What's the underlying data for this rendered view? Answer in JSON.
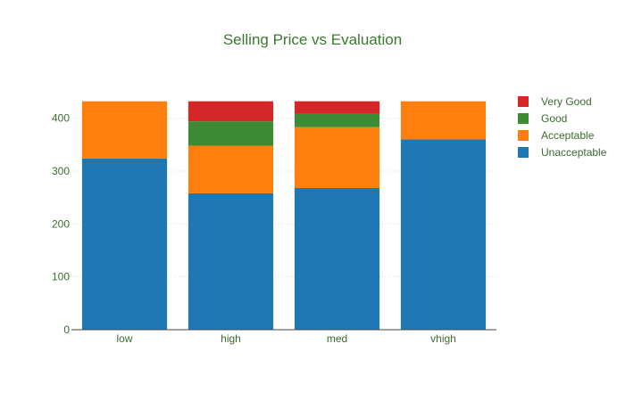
{
  "chart_data": {
    "type": "bar",
    "stacked": true,
    "title": "Selling Price vs Evaluation",
    "xlabel": "",
    "ylabel": "",
    "categories": [
      "low",
      "high",
      "med",
      "vhigh"
    ],
    "series": [
      {
        "name": "Unacceptable",
        "color": "#1f77b4",
        "values": [
          324,
          258,
          268,
          360
        ]
      },
      {
        "name": "Acceptable",
        "color": "#ff7f0e",
        "values": [
          108,
          90,
          115,
          72
        ]
      },
      {
        "name": "Good",
        "color": "#3d8c35",
        "values": [
          0,
          46,
          25,
          0
        ]
      },
      {
        "name": "Very Good",
        "color": "#d62728",
        "values": [
          0,
          38,
          24,
          0
        ]
      }
    ],
    "ylim": [
      0,
      455
    ],
    "yticks": [
      0,
      100,
      200,
      300,
      400
    ],
    "grid": true,
    "legend": "top-right"
  }
}
